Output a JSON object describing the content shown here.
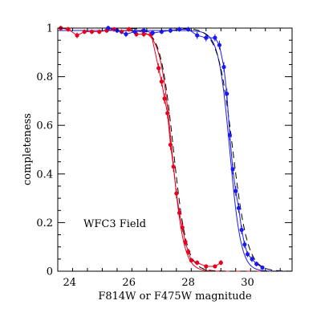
{
  "chart_data": {
    "type": "line",
    "title": "",
    "xlabel": "F814W or F475W magnitude",
    "ylabel": "completeness",
    "annotation": "WFC3 Field",
    "xlim": [
      23.6,
      31.5
    ],
    "ylim": [
      0,
      1
    ],
    "x_ticks": [
      24,
      26,
      28,
      30
    ],
    "y_ticks": [
      0,
      0.2,
      0.4,
      0.6,
      0.8,
      1
    ],
    "y_tick_labels": [
      "0",
      "0.2",
      "0.4",
      "0.6",
      "0.8",
      "1"
    ],
    "grid": false,
    "legend": "none",
    "series": [
      {
        "color": "#e8001c",
        "style": "points-with-errorbars",
        "x": [
          23.7,
          23.95,
          24.25,
          24.5,
          24.75,
          25.0,
          25.25,
          25.5,
          25.75,
          26.0,
          26.25,
          26.5,
          26.75,
          27.0,
          27.1,
          27.2,
          27.3,
          27.4,
          27.5,
          27.6,
          27.7,
          27.8,
          27.9,
          28.0,
          28.1,
          28.3,
          28.6,
          28.9,
          29.1
        ],
        "y": [
          1.0,
          0.995,
          0.97,
          0.985,
          0.985,
          0.985,
          0.99,
          0.995,
          0.985,
          0.995,
          0.975,
          0.975,
          0.975,
          0.835,
          0.78,
          0.71,
          0.65,
          0.52,
          0.43,
          0.32,
          0.24,
          0.18,
          0.12,
          0.08,
          0.045,
          0.035,
          0.02,
          0.02,
          0.035
        ],
        "yerr": [
          0.01,
          0.01,
          0.012,
          0.01,
          0.01,
          0.01,
          0.01,
          0.01,
          0.01,
          0.01,
          0.012,
          0.012,
          0.012,
          0.02,
          0.02,
          0.022,
          0.022,
          0.022,
          0.022,
          0.02,
          0.02,
          0.018,
          0.015,
          0.012,
          0.01,
          0.01,
          0.008,
          0.008,
          0.01
        ]
      },
      {
        "color": "#1a1aee",
        "style": "points-with-errorbars",
        "x": [
          25.3,
          25.6,
          25.9,
          26.2,
          26.5,
          26.8,
          27.1,
          27.4,
          27.7,
          28.0,
          28.3,
          28.6,
          28.9,
          29.05,
          29.2,
          29.3,
          29.4,
          29.5,
          29.6,
          29.7,
          29.8,
          29.9,
          30.0,
          30.15,
          30.3,
          30.5
        ],
        "y": [
          1.0,
          0.99,
          0.975,
          0.985,
          0.99,
          0.98,
          0.985,
          0.99,
          0.995,
          0.995,
          0.97,
          0.96,
          0.96,
          0.93,
          0.84,
          0.73,
          0.56,
          0.42,
          0.33,
          0.26,
          0.17,
          0.11,
          0.07,
          0.05,
          0.03,
          0.015
        ],
        "yerr": [
          0.01,
          0.01,
          0.012,
          0.01,
          0.01,
          0.012,
          0.01,
          0.01,
          0.01,
          0.01,
          0.015,
          0.015,
          0.015,
          0.018,
          0.02,
          0.022,
          0.022,
          0.022,
          0.02,
          0.02,
          0.018,
          0.015,
          0.012,
          0.012,
          0.01,
          0.008
        ]
      }
    ],
    "model_curves": [
      {
        "color": "#e8001c",
        "limit": 0.99,
        "m50": 27.45,
        "width": 0.2
      },
      {
        "color": "#1a1aee",
        "limit": 0.99,
        "m50": 29.4,
        "width": 0.19
      },
      {
        "color": "#000000",
        "dashed": true,
        "limit": 1.0,
        "m50": 27.5,
        "width": 0.22
      },
      {
        "color": "#000000",
        "dashed": true,
        "limit": 1.0,
        "m50": 29.5,
        "width": 0.25
      }
    ]
  }
}
